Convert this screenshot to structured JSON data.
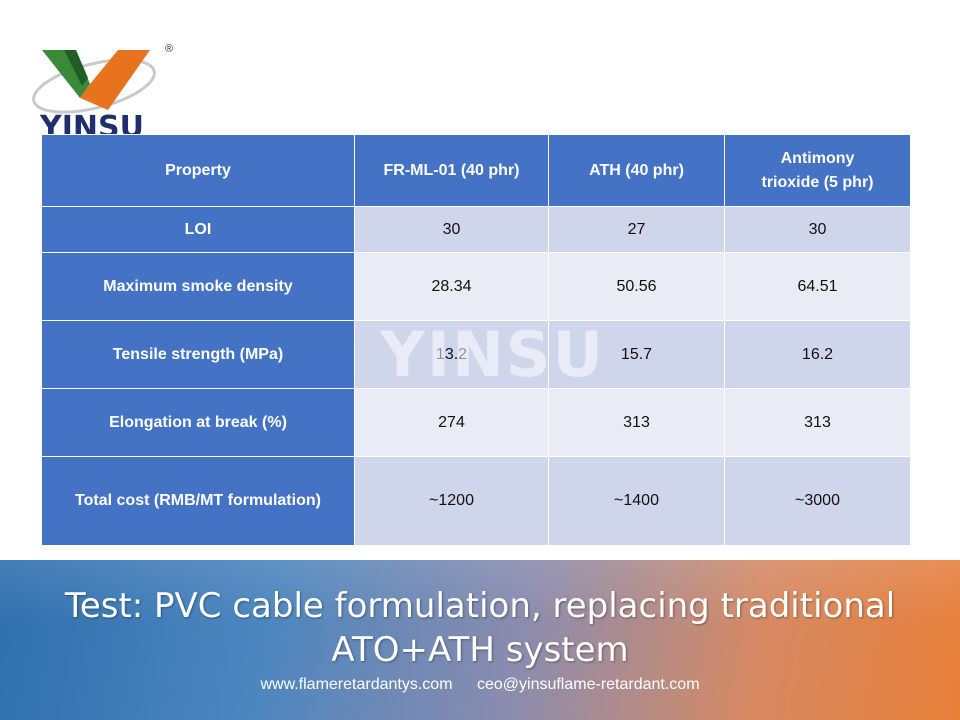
{
  "brand": {
    "name": "YINSU",
    "registered_mark": "®",
    "watermark": "YINSU"
  },
  "table": {
    "headers": [
      "Property",
      "FR-ML-01 (40 phr)",
      "ATH (40 phr)",
      "Antimony trioxide (5 phr)"
    ],
    "rows": [
      [
        "LOI",
        "30",
        "27",
        "30"
      ],
      [
        "Maximum smoke density",
        "28.34",
        "50.56",
        "64.51"
      ],
      [
        "Tensile strength (MPa)",
        "13.2",
        "15.7",
        "16.2"
      ],
      [
        "Elongation at break (%)",
        "274",
        "313",
        "313"
      ],
      [
        "Total cost (RMB/MT formulation)",
        "~1200",
        "~1400",
        "~3000"
      ]
    ]
  },
  "footer": {
    "title": "Test: PVC cable formulation, replacing traditional ATO+ATH system",
    "website": "www.flameretardantys.com",
    "email": "ceo@yinsuflame-retardant.com"
  },
  "colors": {
    "header_blue": "#4472c4",
    "row_light": "#cfd5ea",
    "row_lighter": "#e9ebf5",
    "logo_green": "#2e7d32",
    "logo_orange": "#e8731e",
    "logo_navy": "#1f2f6b",
    "banner_left": "#2f6fae",
    "banner_right": "#e8803a"
  }
}
